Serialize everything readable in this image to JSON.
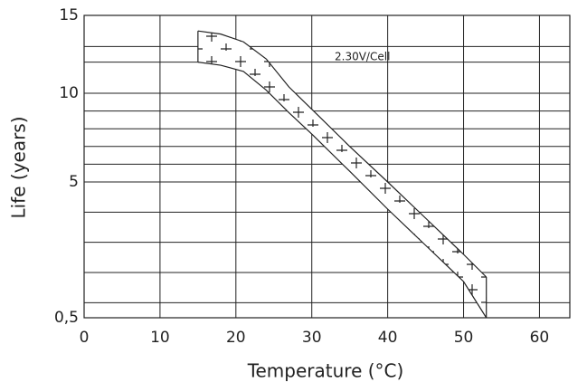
{
  "chart_data": {
    "type": "band",
    "x_label": "Temperature (°C)",
    "y_label": "Life (years)",
    "annotation": "2.30V/Cell",
    "xlim": [
      0,
      64
    ],
    "xticks": [
      0,
      10,
      20,
      30,
      40,
      50,
      60
    ],
    "ylim": [
      0.5,
      15
    ],
    "yticks": [
      {
        "value": 0.5,
        "label": "0,5"
      },
      5,
      10,
      15
    ],
    "ygrid": [
      1,
      2,
      3,
      4,
      6,
      7,
      8,
      9,
      12,
      13
    ],
    "grid": true,
    "color": "#222222",
    "series": [
      {
        "x": [
          15,
          18,
          21,
          24,
          27,
          30,
          35,
          40,
          45,
          50,
          53
        ],
        "values": [
          14.0,
          13.8,
          13.3,
          12.2,
          10.4,
          9.1,
          7.0,
          5.0,
          3.8,
          2.6,
          1.85
        ]
      },
      {
        "x": [
          15,
          18,
          21,
          24,
          27,
          30,
          35,
          40,
          45,
          50,
          53
        ],
        "values": [
          12.0,
          11.8,
          11.4,
          10.2,
          8.9,
          7.7,
          5.6,
          4.1,
          2.9,
          1.7,
          0.5
        ]
      }
    ]
  }
}
